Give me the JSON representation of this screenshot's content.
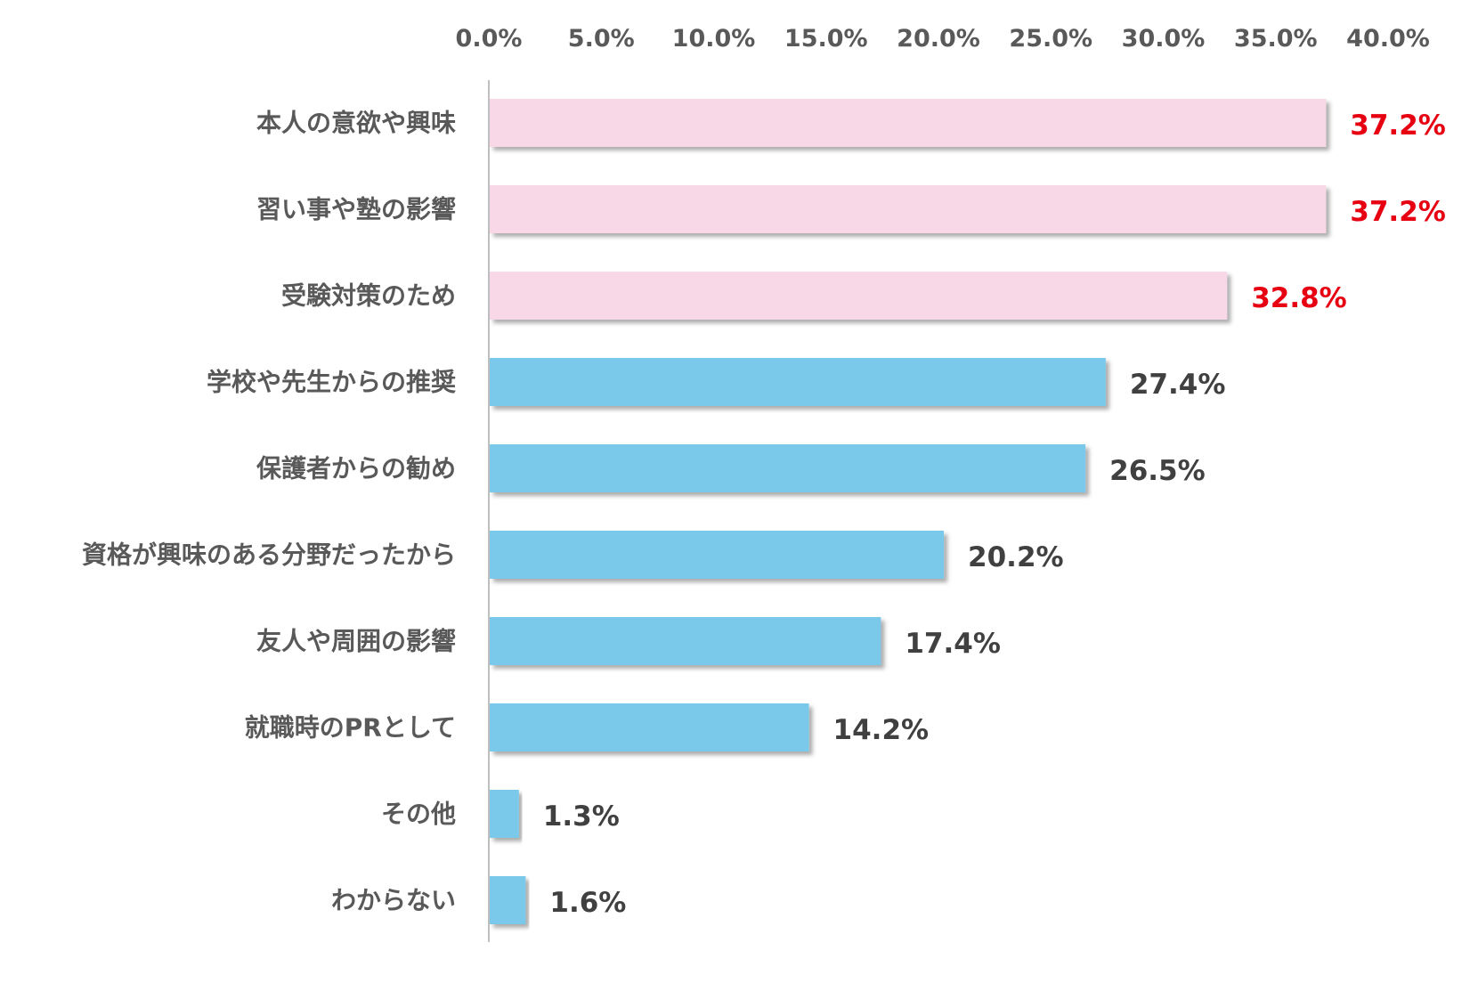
{
  "chart_data": {
    "type": "bar",
    "orientation": "horizontal",
    "title": "",
    "xlabel": "",
    "ylabel": "",
    "xlim": [
      0,
      40
    ],
    "x_ticks": [
      0,
      5,
      10,
      15,
      20,
      25,
      30,
      35,
      40
    ],
    "x_tick_labels": [
      "0.0%",
      "5.0%",
      "10.0%",
      "15.0%",
      "20.0%",
      "25.0%",
      "30.0%",
      "35.0%",
      "40.0%"
    ],
    "x_axis_position": "top",
    "grid": false,
    "legend": "none",
    "categories": [
      "本人の意欲や興味",
      "習い事や塾の影響",
      "受験対策のため",
      "学校や先生からの推奨",
      "保護者からの勧め",
      "資格が興味のある分野だったから",
      "友人や周囲の影響",
      "就職時のPRとして",
      "その他",
      "わからない"
    ],
    "values": [
      37.2,
      37.2,
      32.8,
      27.4,
      26.5,
      20.2,
      17.4,
      14.2,
      1.3,
      1.6
    ],
    "value_labels": [
      "37.2%",
      "37.2%",
      "32.8%",
      "27.4%",
      "26.5%",
      "20.2%",
      "17.4%",
      "14.2%",
      "1.3%",
      "1.6%"
    ],
    "highlight_top_n": 3,
    "colors": {
      "highlight_bar": "#F8D7E6",
      "normal_bar": "#7AC9EB",
      "highlight_label": "#E60012",
      "normal_label": "#404040",
      "tick_text": "#595959",
      "axis_line": "#BFBFBF"
    }
  }
}
